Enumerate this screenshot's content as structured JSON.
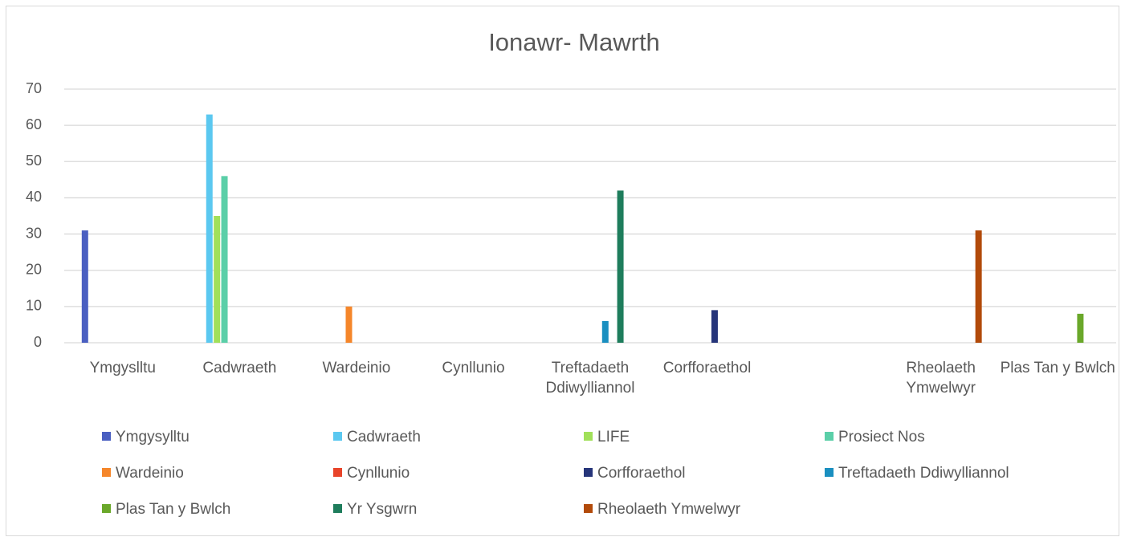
{
  "chart_data": {
    "type": "bar",
    "title": "Ionawr- Mawrth",
    "categories": [
      "Ymgyslltu",
      "Cadwraeth",
      "Wardeinio",
      "Cynllunio",
      "Treftadaeth Ddiwylliannol",
      "Corfforaethol",
      null,
      "Rheolaeth Ymwelwyr",
      "Plas Tan y Bwlch"
    ],
    "series": [
      {
        "name": "Ymgysylltu",
        "color": "#4a5fc1",
        "values": [
          31,
          null,
          null,
          null,
          null,
          null,
          null,
          null,
          null
        ]
      },
      {
        "name": "Cadwraeth",
        "color": "#5bc8f0",
        "values": [
          null,
          63,
          null,
          null,
          null,
          null,
          null,
          null,
          null
        ]
      },
      {
        "name": "LIFE",
        "color": "#a1e05a",
        "values": [
          null,
          35,
          null,
          null,
          null,
          null,
          null,
          null,
          null
        ]
      },
      {
        "name": "Prosiect Nos",
        "color": "#5bcfa8",
        "values": [
          null,
          46,
          null,
          null,
          null,
          null,
          null,
          null,
          null
        ]
      },
      {
        "name": "Wardeinio",
        "color": "#f5862a",
        "values": [
          null,
          null,
          10,
          null,
          null,
          null,
          null,
          null,
          null
        ]
      },
      {
        "name": "Cynllunio",
        "color": "#e8442a",
        "values": [
          null,
          null,
          null,
          null,
          null,
          null,
          null,
          null,
          null
        ]
      },
      {
        "name": "Corfforaethol",
        "color": "#26357a",
        "values": [
          null,
          null,
          null,
          null,
          null,
          9,
          null,
          null,
          null
        ]
      },
      {
        "name": "Treftadaeth Ddiwylliannol",
        "color": "#1a8fc0",
        "values": [
          null,
          null,
          null,
          null,
          6,
          null,
          null,
          null,
          null
        ]
      },
      {
        "name": "Plas Tan y Bwlch",
        "color": "#6aa82a",
        "values": [
          null,
          null,
          null,
          null,
          null,
          null,
          null,
          null,
          8
        ]
      },
      {
        "name": "Yr Ysgwrn",
        "color": "#1e7d5c",
        "values": [
          null,
          null,
          null,
          null,
          42,
          null,
          null,
          null,
          null
        ]
      },
      {
        "name": "Rheolaeth Ymwelwyr",
        "color": "#b24a0a",
        "values": [
          null,
          null,
          null,
          null,
          null,
          null,
          null,
          31,
          null
        ]
      }
    ],
    "ylim": [
      0,
      70
    ],
    "yticks": [
      0,
      10,
      20,
      30,
      40,
      50,
      60,
      70
    ],
    "grid": true,
    "legend": "bottom"
  }
}
